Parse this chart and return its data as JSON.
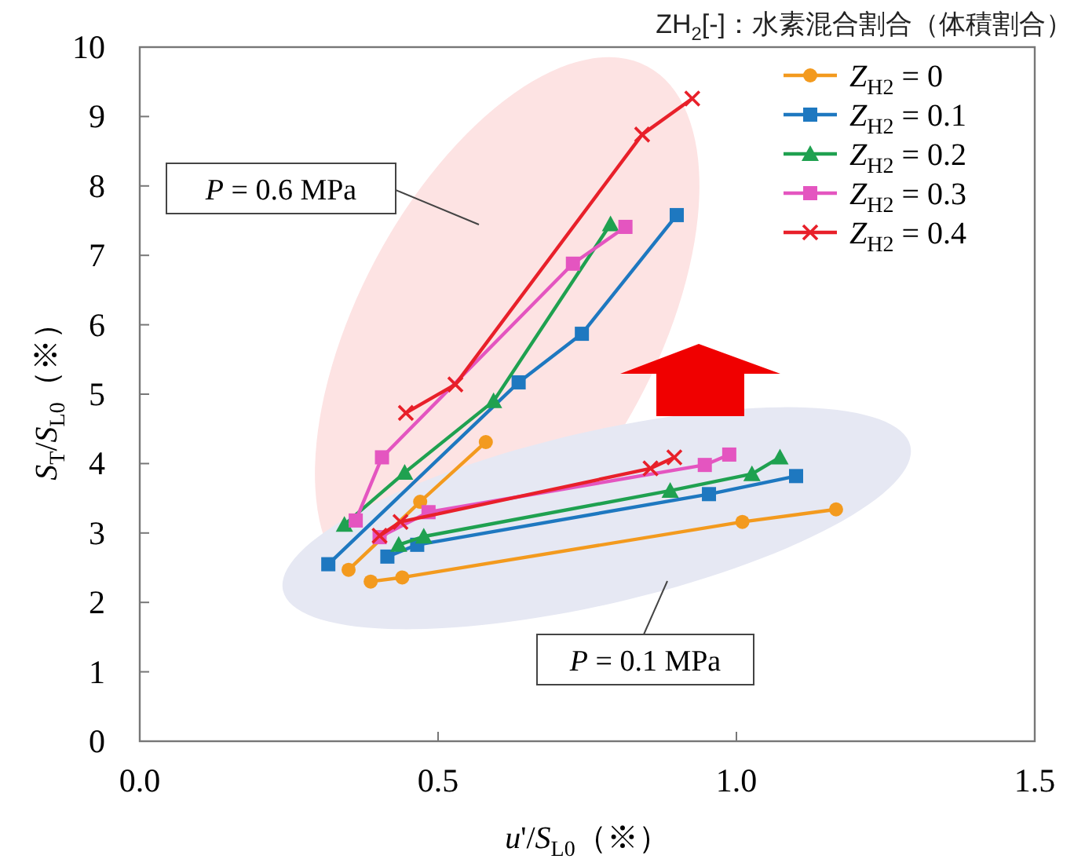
{
  "chart_data": {
    "type": "line",
    "title": "ZH$_{2}$[-]：水素混合割合（体積割合）",
    "xlabel": "*u*'/*S*$_{L0}$（※）",
    "ylabel": "*S*$_{T}$/*S*$_{L0}$（※）",
    "xlim": [
      0,
      1.5
    ],
    "ylim": [
      0,
      10
    ],
    "xticks": [
      {
        "value": 0,
        "label": "0.0"
      },
      {
        "value": 0.5,
        "label": "0.5"
      },
      {
        "value": 1,
        "label": "1.0"
      },
      {
        "value": 1.5,
        "label": "1.5"
      }
    ],
    "yticks": [
      0,
      1,
      2,
      3,
      4,
      5,
      6,
      7,
      8,
      9,
      10
    ],
    "legend": "top right",
    "grid": false,
    "line_style": "solid",
    "annotations": [
      "*P* = 0.6 MPa",
      "*P* = 0.1 MPa"
    ],
    "series": [
      {
        "name": "*Z*$_{H2}$ = 0",
        "color": "#f39a1e",
        "marker": "circle",
        "x": [
          0.35,
          0.47,
          0.58,
          null,
          0.387,
          0.44,
          1.01,
          1.167
        ],
        "values": [
          2.47,
          3.45,
          4.31,
          null,
          2.3,
          2.36,
          3.16,
          3.34
        ]
      },
      {
        "name": "*Z*$_{H2}$ = 0.1",
        "color": "#1e78c0",
        "marker": "square",
        "x": [
          0.316,
          0.635,
          0.741,
          0.9,
          null,
          0.415,
          0.465,
          0.954,
          1.1
        ],
        "values": [
          2.55,
          5.17,
          5.87,
          7.58,
          null,
          2.66,
          2.83,
          3.56,
          3.82
        ]
      },
      {
        "name": "*Z*$_{H2}$ = 0.2",
        "color": "#1fa150",
        "marker": "triangle",
        "x": [
          0.343,
          0.444,
          0.593,
          0.789,
          null,
          0.434,
          0.476,
          0.889,
          1.026,
          1.073
        ],
        "values": [
          3.12,
          3.87,
          4.9,
          7.45,
          null,
          2.83,
          2.95,
          3.61,
          3.85,
          4.09
        ]
      },
      {
        "name": "*Z*$_{H2}$ = 0.3",
        "color": "#e455c0",
        "marker": "square",
        "x": [
          0.362,
          0.406,
          0.726,
          0.814,
          null,
          0.402,
          0.484,
          0.947,
          0.988
        ],
        "values": [
          3.18,
          4.09,
          6.88,
          7.41,
          null,
          2.94,
          3.3,
          3.98,
          4.13
        ]
      },
      {
        "name": "*Z*$_{H2}$ = 0.4",
        "color": "#e8202a",
        "marker": "cross",
        "x": [
          0.446,
          0.529,
          0.842,
          0.926,
          null,
          0.402,
          0.437,
          0.856,
          0.896
        ],
        "values": [
          4.73,
          5.14,
          8.74,
          9.26,
          null,
          2.96,
          3.16,
          3.93,
          4.09
        ]
      }
    ]
  }
}
